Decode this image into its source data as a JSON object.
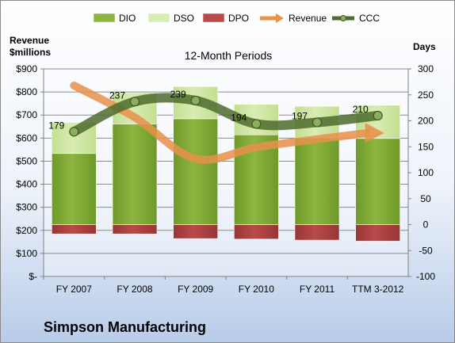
{
  "chart_data": {
    "type": "bar",
    "subtitle": "12-Month Periods",
    "company": "Simpson Manufacturing",
    "ylabel_left": "Revenue\n$millions",
    "ylabel_right": "Days",
    "ylim_left": [
      0,
      900
    ],
    "ylim_right": [
      -100,
      300
    ],
    "yticks_left": [
      "$-",
      "$100",
      "$200",
      "$300",
      "$400",
      "$500",
      "$600",
      "$700",
      "$800",
      "$900"
    ],
    "yticks_right": [
      "-100",
      "-50",
      "0",
      "50",
      "100",
      "150",
      "200",
      "250",
      "300"
    ],
    "categories": [
      "FY 2007",
      "FY 2008",
      "FY 2009",
      "FY 2010",
      "FY 2011",
      "TTM 3-2012"
    ],
    "legend": [
      "DIO",
      "DSO",
      "DPO",
      "Revenue",
      "CCC"
    ],
    "colors": {
      "DIO": "#8db53f",
      "DSO": "#d9ecb4",
      "DPO": "#b94a4a",
      "Revenue": "#e8914a",
      "CCC": "#4e6b2e"
    },
    "series": [
      {
        "name": "DIO",
        "axis": "right",
        "values": [
          137,
          194,
          204,
          173,
          167,
          166
        ]
      },
      {
        "name": "DSO",
        "axis": "right",
        "values": [
          60,
          60,
          62,
          59,
          61,
          64
        ]
      },
      {
        "name": "DPO",
        "axis": "right",
        "values": [
          -18,
          -18,
          -27,
          -28,
          -30,
          -32
        ]
      },
      {
        "name": "Revenue",
        "axis": "left",
        "values": [
          828,
          690,
          510,
          560,
          595,
          625
        ]
      },
      {
        "name": "CCC",
        "axis": "right",
        "values": [
          179,
          237,
          239,
          194,
          197,
          210
        ]
      }
    ],
    "data_labels": [
      "179",
      "237",
      "239",
      "194",
      "197",
      "210"
    ]
  }
}
